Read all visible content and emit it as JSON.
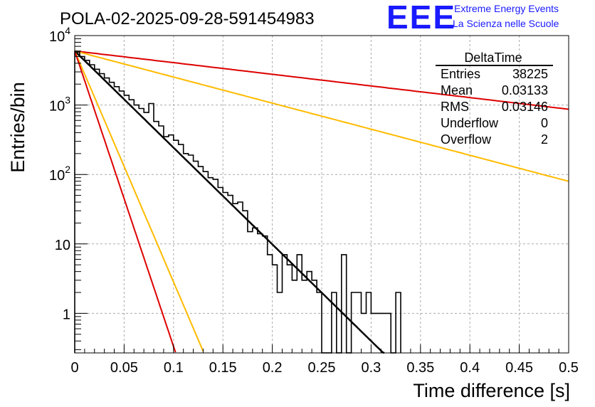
{
  "header": {
    "plot_title": "POLA-02-2025-09-28-591454983",
    "logo_text": "EEE",
    "logo_line1": "Extreme Energy Events",
    "logo_line2": "La Scienza nelle Scuole"
  },
  "stats_box": {
    "title": "DeltaTime",
    "rows": [
      {
        "label": "Entries",
        "value": "38225"
      },
      {
        "label": "Mean",
        "value": "0.03133"
      },
      {
        "label": "RMS",
        "value": "0.03146"
      },
      {
        "label": "Underflow",
        "value": "0"
      },
      {
        "label": "Overflow",
        "value": "2"
      }
    ]
  },
  "colors": {
    "histogram": "#000000",
    "fit": "#000000",
    "red_curve": "#dd0000",
    "orange_curve": "#ffbb00",
    "grid": "#aaaaaa"
  },
  "chart_data": {
    "type": "histogram",
    "title": "POLA-02-2025-09-28-591454983",
    "xlabel": "Time difference [s]",
    "ylabel": "Entries/bin",
    "x_scale": "linear",
    "y_scale": "log",
    "xlim": [
      0,
      0.5
    ],
    "ylim": [
      0.27,
      10000
    ],
    "grid": true,
    "x_ticks": [
      {
        "value": 0,
        "label": "0"
      },
      {
        "value": 0.05,
        "label": "0.05"
      },
      {
        "value": 0.1,
        "label": "0.1"
      },
      {
        "value": 0.15,
        "label": "0.15"
      },
      {
        "value": 0.2,
        "label": "0.2"
      },
      {
        "value": 0.25,
        "label": "0.25"
      },
      {
        "value": 0.3,
        "label": "0.3"
      },
      {
        "value": 0.35,
        "label": "0.35"
      },
      {
        "value": 0.4,
        "label": "0.4"
      },
      {
        "value": 0.45,
        "label": "0.45"
      },
      {
        "value": 0.5,
        "label": "0.5"
      }
    ],
    "y_ticks": [
      {
        "value": 1,
        "label": "1"
      },
      {
        "value": 10,
        "label": "10"
      },
      {
        "value": 100,
        "label": "10",
        "exponent": "2"
      },
      {
        "value": 1000,
        "label": "10",
        "exponent": "3"
      },
      {
        "value": 10000,
        "label": "10",
        "exponent": "4"
      }
    ],
    "histogram": {
      "name": "DeltaTime",
      "bin_width": 0.005,
      "bin_start": 0,
      "counts": [
        5800,
        5000,
        4400,
        3800,
        3280,
        2830,
        2450,
        2120,
        1840,
        1590,
        1380,
        1190,
        1000,
        890,
        780,
        1050,
        580,
        500,
        350,
        370,
        310,
        270,
        200,
        190,
        155,
        130,
        110,
        90,
        85,
        65,
        55,
        50,
        38,
        40,
        30,
        15,
        17,
        14,
        13,
        7,
        5,
        2,
        7,
        5,
        3,
        7,
        3,
        4,
        3,
        2,
        0.27,
        0.27,
        2,
        0.27,
        7,
        0.27,
        2,
        2,
        1,
        2,
        1,
        1,
        1,
        1,
        0.27,
        2
      ],
      "floor_value": 0.27
    },
    "series": [
      {
        "name": "fit",
        "type": "exponential",
        "amplitude": 6000,
        "tau": 0.0312,
        "x_range": [
          0,
          0.315
        ]
      },
      {
        "name": "upper-red",
        "type": "exponential",
        "amplitude": 6000,
        "tau": 0.2588,
        "x_range": [
          0,
          0.5
        ]
      },
      {
        "name": "upper-orange",
        "type": "exponential",
        "amplitude": 6000,
        "tau": 0.1157,
        "x_range": [
          0,
          0.5
        ]
      },
      {
        "name": "lower-orange",
        "type": "exponential",
        "amplitude": 6000,
        "tau": 0.01306,
        "x_range": [
          0,
          0.13
        ]
      },
      {
        "name": "lower-red",
        "type": "exponential",
        "amplitude": 6000,
        "tau": 0.01021,
        "x_range": [
          0,
          0.102
        ]
      }
    ]
  }
}
